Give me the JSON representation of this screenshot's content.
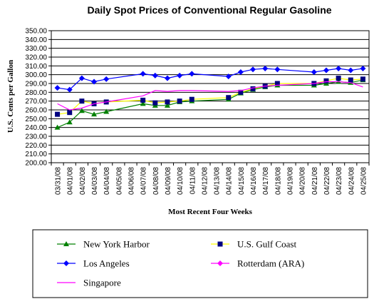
{
  "chart_data": {
    "type": "line",
    "title": "Daily Spot Prices of Conventional Regular Gasoline",
    "xlabel": "Most Recent Four Weeks",
    "ylabel": "U.S. Cents per Gallon",
    "ylim": [
      200,
      350
    ],
    "ytick_step": 10,
    "ytick_labels": [
      "200.00",
      "210.00",
      "220.00",
      "230.00",
      "240.00",
      "250.00",
      "260.00",
      "270.00",
      "280.00",
      "290.00",
      "300.00",
      "310.00",
      "320.00",
      "330.00",
      "340.00",
      "350.00"
    ],
    "grid": "horizontal",
    "legend_placement": "bottom",
    "categories": [
      "03/31/08",
      "04/01/08",
      "04/02/08",
      "04/03/08",
      "04/04/08",
      "04/05/08",
      "04/06/08",
      "04/07/08",
      "04/08/08",
      "04/09/08",
      "04/10/08",
      "04/11/08",
      "04/12/08",
      "04/13/08",
      "04/14/08",
      "04/15/08",
      "04/16/08",
      "04/17/08",
      "04/18/08",
      "04/19/08",
      "04/20/08",
      "04/21/08",
      "04/22/08",
      "04/23/08",
      "04/24/08",
      "04/25/08"
    ],
    "series": [
      {
        "name": "New York Harbor",
        "color": "#008000",
        "marker": "triangle",
        "values": [
          240,
          246,
          259,
          255,
          258,
          null,
          null,
          267,
          265,
          265,
          269,
          270,
          null,
          null,
          272,
          279,
          283,
          286,
          288,
          null,
          null,
          288,
          290,
          292,
          291,
          294
        ]
      },
      {
        "name": "U.S. Gulf Coast",
        "color": "#ffff00",
        "marker": "square",
        "marker_color": "#000080",
        "values": [
          255,
          257,
          270,
          267,
          269,
          null,
          null,
          271,
          268,
          269,
          270,
          272,
          null,
          null,
          274,
          280,
          284,
          287,
          290,
          null,
          null,
          290,
          293,
          296,
          294,
          295
        ]
      },
      {
        "name": "Los Angeles",
        "color": "#0000ff",
        "marker": "diamond",
        "values": [
          285,
          283,
          296,
          292,
          295,
          null,
          null,
          301,
          299,
          296,
          299,
          301,
          null,
          null,
          298,
          303,
          306,
          307,
          306,
          null,
          null,
          303,
          305,
          307,
          305,
          307
        ]
      },
      {
        "name": "Rotterdam (ARA)",
        "color": "#ff00ff",
        "marker": "diamond",
        "values": [
          null,
          null,
          null,
          null,
          null,
          null,
          null,
          null,
          null,
          null,
          null,
          null,
          null,
          null,
          null,
          null,
          null,
          null,
          null,
          null,
          null,
          null,
          null,
          null,
          null,
          null
        ]
      },
      {
        "name": "Singapore",
        "color": "#ff00ff",
        "marker": "none",
        "values": [
          267,
          260,
          262,
          267,
          269,
          null,
          null,
          276,
          282,
          281,
          282,
          282,
          null,
          null,
          281,
          282,
          285,
          287,
          288,
          null,
          null,
          290,
          292,
          292,
          291,
          286
        ]
      }
    ]
  }
}
